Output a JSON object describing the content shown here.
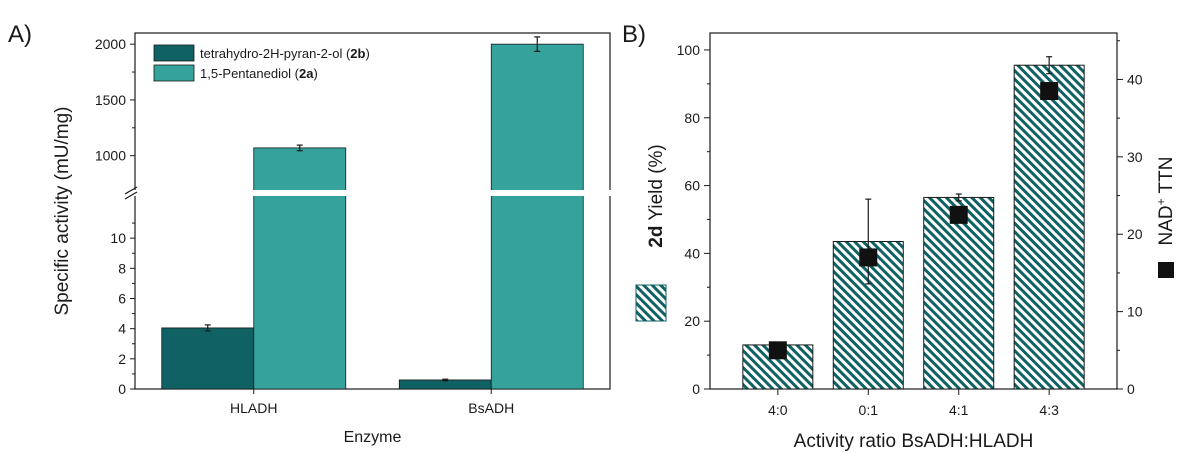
{
  "panels": {
    "a": "A)",
    "b": "B)"
  },
  "colors": {
    "dark": "#0f6163",
    "light": "#35a39c",
    "axis": "#1a1a1a",
    "marker": "#111111"
  },
  "chart_data": [
    {
      "type": "bar",
      "title": "",
      "xlabel": "Enzyme",
      "ylabel": "Specific activity (mU/mg)",
      "categories": [
        "HLADH",
        "BsADH"
      ],
      "axis_break": true,
      "ylim_lower": [
        0,
        12
      ],
      "ylim_upper": [
        800,
        2100
      ],
      "yticks_lower": [
        "0",
        "2",
        "4",
        "6",
        "8",
        "10"
      ],
      "yticks_upper": [
        "1000",
        "1500",
        "2000"
      ],
      "legend_position": "top-left",
      "series": [
        {
          "name": "tetrahydro-2H-pyran-2-ol",
          "compound": "2b",
          "values": [
            4.05,
            0.6
          ],
          "errors": [
            0.2,
            0.05
          ]
        },
        {
          "name": "1,5-Pentanediol",
          "compound": "2a",
          "values": [
            1070,
            2000
          ],
          "errors": [
            25,
            65
          ]
        }
      ]
    },
    {
      "type": "bar",
      "title": "",
      "xlabel": "Activity ratio BsADH:HLADH",
      "ylabel_bold": "2d",
      "ylabel": "Yield (%)",
      "y2label": "NAD+ TTN",
      "y2label_base": "NAD",
      "y2label_sup": "+",
      "y2label_rest": " TTN",
      "categories": [
        "4:0",
        "0:1",
        "4:1",
        "4:3"
      ],
      "ylim": [
        0,
        105
      ],
      "y2lim": [
        0,
        46
      ],
      "yticks": [
        "0",
        "20",
        "40",
        "60",
        "80",
        "100"
      ],
      "y2ticks": [
        "0",
        "10",
        "20",
        "30",
        "40"
      ],
      "series": [
        {
          "name": "2d Yield",
          "axis": "left",
          "style": "hatched bars",
          "values": [
            13,
            43.5,
            56.5,
            95.5
          ],
          "errors": [
            0.5,
            12.5,
            1.0,
            2.5
          ]
        },
        {
          "name": "NAD+ TTN",
          "axis": "right",
          "style": "square markers",
          "values": [
            5.0,
            17.0,
            22.5,
            38.5
          ]
        }
      ]
    }
  ]
}
